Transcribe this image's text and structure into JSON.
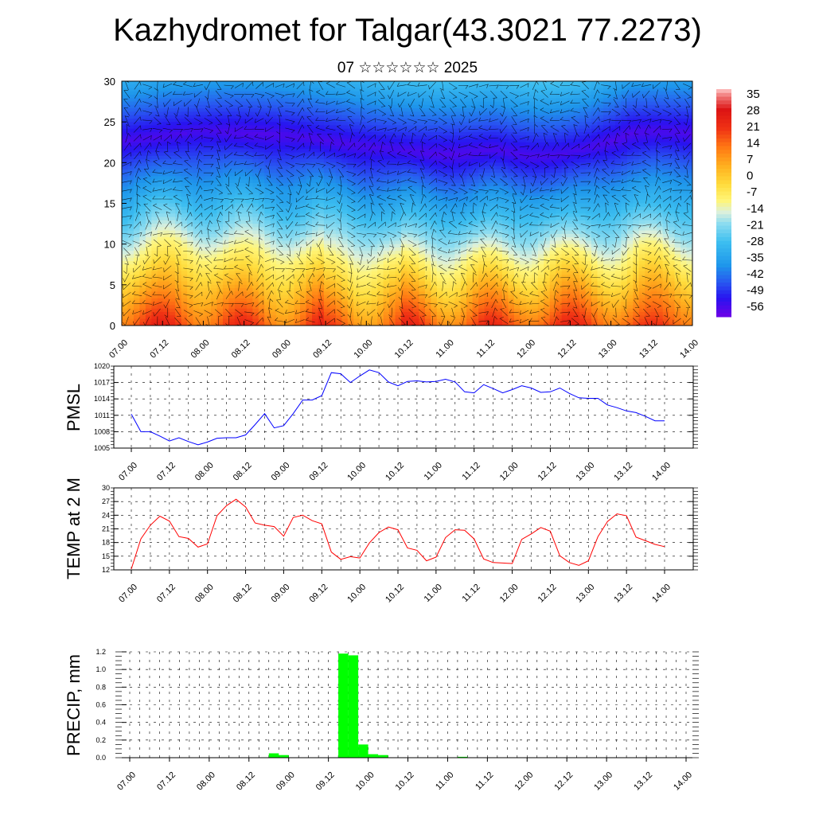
{
  "title": "Kazhydromet for Talgar(43.3021 77.2273)",
  "subtitle": "07 ☆☆☆☆☆☆ 2025",
  "time_labels": [
    "07.00",
    "07.12",
    "08.00",
    "08.12",
    "09.00",
    "09.12",
    "10.00",
    "10.12",
    "11.00",
    "11.12",
    "12.00",
    "12.12",
    "13.00",
    "13.12",
    "14.00"
  ],
  "chart_data": [
    {
      "type": "heatmap",
      "description": "temperature cross-section with wind barbs",
      "x_ticks": [
        "07.00",
        "07.12",
        "08.00",
        "08.12",
        "09.00",
        "09.12",
        "10.00",
        "10.12",
        "11.00",
        "11.12",
        "12.00",
        "12.12",
        "13.00",
        "13.12",
        "14.00"
      ],
      "y_ticks": [
        0,
        5,
        10,
        15,
        20,
        25,
        30
      ],
      "ylim": [
        0,
        30
      ],
      "colorbar_labels": [
        "35",
        "28",
        "21",
        "14",
        "7",
        "0",
        "-7",
        "-14",
        "-21",
        "-28",
        "-35",
        "-42",
        "-49",
        "-56"
      ],
      "colorbar_range": [
        -60,
        38
      ]
    },
    {
      "type": "line",
      "ylabel": "PMSL",
      "ylim": [
        1005,
        1020
      ],
      "y_ticks": [
        "1005",
        "1008",
        "1011",
        "1014",
        "1017",
        "1020"
      ],
      "color": "#0000ff",
      "x": [
        0,
        3,
        6,
        9,
        12,
        15,
        18,
        21,
        24,
        27,
        30,
        33,
        36,
        39,
        42,
        45,
        48,
        51,
        54,
        57,
        60,
        63,
        66,
        69,
        72,
        75,
        78,
        81,
        84,
        87,
        90,
        93,
        96,
        99,
        102,
        105,
        108,
        111,
        114,
        117,
        120,
        123,
        126,
        129,
        132,
        135,
        138,
        141,
        144,
        147,
        150,
        153,
        156,
        159,
        162,
        165,
        168
      ],
      "values": [
        1011.2,
        1008,
        1008,
        1007.2,
        1006.3,
        1006.9,
        1006.2,
        1005.6,
        1006.1,
        1006.8,
        1006.9,
        1006.9,
        1007.4,
        1009.3,
        1011.3,
        1008.7,
        1009.1,
        1011.3,
        1013.8,
        1013.8,
        1014.6,
        1018.8,
        1018.6,
        1017,
        1018.2,
        1019.3,
        1018.8,
        1017.1,
        1016.4,
        1017.2,
        1017.3,
        1017.1,
        1017.2,
        1017.6,
        1017.1,
        1015.3,
        1015.1,
        1016.6,
        1015.9,
        1015.1,
        1015.7,
        1016.4,
        1016,
        1015.2,
        1015.3,
        1016,
        1015,
        1014.2,
        1014.1,
        1014.1,
        1012.9,
        1012.4,
        1011.8,
        1011.5,
        1010.8,
        1010,
        1010
      ]
    },
    {
      "type": "line",
      "ylabel": "TEMP at 2 M",
      "ylim": [
        12,
        30
      ],
      "y_ticks": [
        "12",
        "15",
        "18",
        "21",
        "24",
        "27",
        "30"
      ],
      "color": "#ff0000",
      "x": [
        0,
        3,
        6,
        9,
        12,
        15,
        18,
        21,
        24,
        27,
        30,
        33,
        36,
        39,
        42,
        45,
        48,
        51,
        54,
        57,
        60,
        63,
        66,
        69,
        72,
        75,
        78,
        81,
        84,
        87,
        90,
        93,
        96,
        99,
        102,
        105,
        108,
        111,
        114,
        117,
        120,
        123,
        126,
        129,
        132,
        135,
        138,
        141,
        144,
        147,
        150,
        153,
        156,
        159,
        162,
        165,
        168
      ],
      "values": [
        12.2,
        18.8,
        21.8,
        23.8,
        22.7,
        19.3,
        18.9,
        17,
        17.7,
        23.9,
        26.1,
        27.5,
        25.8,
        22.3,
        21.8,
        21.5,
        19.4,
        23.5,
        24,
        22.8,
        22.1,
        15.9,
        14.3,
        14.9,
        14.6,
        17.9,
        20.2,
        21.4,
        20.8,
        16.8,
        16.3,
        14,
        14.8,
        19.1,
        20.8,
        20.7,
        18.8,
        14.4,
        13.6,
        13.5,
        13.4,
        18.7,
        19.9,
        21.3,
        20.5,
        15.1,
        13.6,
        13,
        14,
        19.3,
        22.6,
        24.3,
        23.9,
        19.2,
        18.4,
        17.6,
        17.1
      ]
    },
    {
      "type": "bar",
      "ylabel": "PRECIP, mm",
      "ylim": [
        0,
        1.2
      ],
      "y_ticks": [
        "0.0",
        "0.2",
        "0.4",
        "0.6",
        "0.8",
        "1.0",
        "1.2"
      ],
      "color": "#00ff00",
      "bar_width_hours": 3,
      "bars": [
        {
          "x": 42,
          "value": 0.05
        },
        {
          "x": 45,
          "value": 0.03
        },
        {
          "x": 63,
          "value": 1.18
        },
        {
          "x": 66,
          "value": 1.16
        },
        {
          "x": 69,
          "value": 0.15
        },
        {
          "x": 72,
          "value": 0.04
        },
        {
          "x": 75,
          "value": 0.03
        },
        {
          "x": 99,
          "value": 0.01
        }
      ]
    }
  ]
}
